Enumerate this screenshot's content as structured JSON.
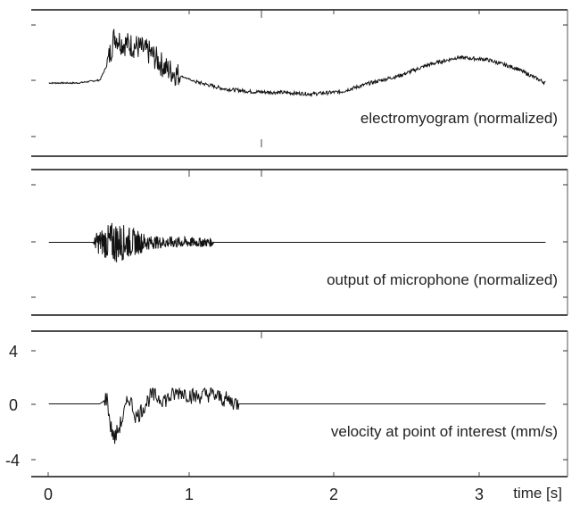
{
  "chart_data": [
    {
      "type": "line",
      "title": "",
      "annotation": "electromyogram (normalized)",
      "xlabel": "",
      "ylabel": "",
      "xlim": [
        -0.12,
        3.55
      ],
      "ylim": [
        -1,
        1
      ],
      "series": [
        {
          "x": [
            0.0,
            0.2,
            0.35,
            0.4,
            0.45,
            0.5,
            0.6,
            0.7,
            0.8,
            0.9,
            1.0,
            1.2,
            1.4,
            1.6,
            1.8,
            2.0,
            2.2,
            2.4,
            2.6,
            2.8,
            3.0,
            3.2,
            3.4
          ],
          "y": [
            0.0,
            0.0,
            0.04,
            0.25,
            0.65,
            0.55,
            0.5,
            0.4,
            0.2,
            0.1,
            0.02,
            -0.08,
            -0.12,
            -0.13,
            -0.15,
            -0.12,
            0.0,
            0.1,
            0.25,
            0.35,
            0.32,
            0.2,
            0.0
          ],
          "burst": [
            0.4,
            0.9
          ]
        }
      ]
    },
    {
      "type": "line",
      "title": "",
      "annotation": "output of microphone (normalized)",
      "xlabel": "",
      "ylabel": "",
      "xlim": [
        -0.12,
        3.55
      ],
      "ylim": [
        -1,
        1
      ],
      "series": [
        {
          "x": [
            0.0,
            0.3,
            0.33,
            0.45,
            0.7,
            1.0,
            1.12,
            1.13,
            3.4
          ],
          "y": [
            0,
            0,
            0,
            0,
            0,
            0,
            0,
            0,
            0
          ],
          "envelope": [
            0,
            0,
            0.15,
            0.3,
            0.09,
            0.07,
            0.06,
            0,
            0
          ]
        }
      ]
    },
    {
      "type": "line",
      "title": "",
      "annotation": "velocity at point of interest (mm/s)",
      "xlabel": "time [s]",
      "ylabel": "",
      "xlim": [
        -0.12,
        3.55
      ],
      "ylim": [
        -5.2,
        5.2
      ],
      "yticks": [
        "4",
        "0",
        "-4"
      ],
      "series": [
        {
          "x": [
            0.0,
            0.35,
            0.4,
            0.42,
            0.45,
            0.5,
            0.55,
            0.6,
            0.7,
            0.8,
            0.9,
            1.0,
            1.1,
            1.3,
            3.4
          ],
          "y": [
            0,
            0,
            0.4,
            -1.5,
            -2.5,
            -1.2,
            0.5,
            -1.0,
            0.6,
            0.3,
            0.9,
            0.5,
            0.7,
            0,
            0
          ]
        }
      ]
    }
  ],
  "axis": {
    "xticks": [
      "0",
      "1",
      "2",
      "3"
    ]
  }
}
